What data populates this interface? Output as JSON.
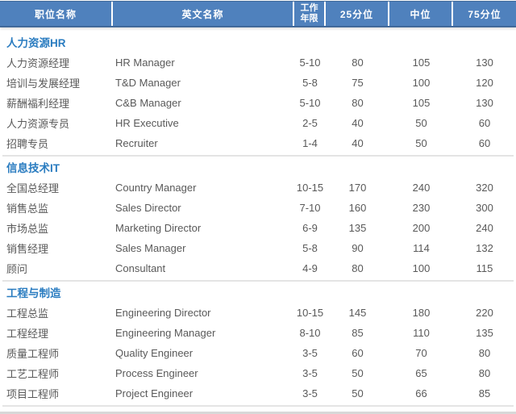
{
  "colors": {
    "header_bg": "#4f81bd",
    "header_border": "#40699a",
    "header_text": "#ffffff",
    "section_title_text": "#2a7cc0",
    "body_text": "#595959",
    "divider": "#e4e4e4"
  },
  "chart_data": {
    "type": "table",
    "title": "",
    "columns": [
      {
        "label": "职位名称"
      },
      {
        "label": "英文名称"
      },
      {
        "label": "工作年限",
        "line1": "工作",
        "line2": "年限"
      },
      {
        "label": "25分位"
      },
      {
        "label": "中位"
      },
      {
        "label": "75分位"
      }
    ],
    "sections": [
      {
        "title": "人力资源HR",
        "rows": [
          {
            "cn": "人力资源经理",
            "en": "HR Manager",
            "years": "5-10",
            "p25": "80",
            "p50": "105",
            "p75": "130"
          },
          {
            "cn": "培训与发展经理",
            "en": "T&D Manager",
            "years": "5-8",
            "p25": "75",
            "p50": "100",
            "p75": "120"
          },
          {
            "cn": "薪酬福利经理",
            "en": "C&B Manager",
            "years": "5-10",
            "p25": "80",
            "p50": "105",
            "p75": "130"
          },
          {
            "cn": "人力资源专员",
            "en": "HR Executive",
            "years": "2-5",
            "p25": "40",
            "p50": "50",
            "p75": "60"
          },
          {
            "cn": "招聘专员",
            "en": "Recruiter",
            "years": "1-4",
            "p25": "40",
            "p50": "50",
            "p75": "60"
          }
        ]
      },
      {
        "title": "信息技术IT",
        "rows": [
          {
            "cn": "全国总经理",
            "en": "Country Manager",
            "years": "10-15",
            "p25": "170",
            "p50": "240",
            "p75": "320"
          },
          {
            "cn": "销售总监",
            "en": "Sales Director",
            "years": "7-10",
            "p25": "160",
            "p50": "230",
            "p75": "300"
          },
          {
            "cn": "市场总监",
            "en": "Marketing Director",
            "years": "6-9",
            "p25": "135",
            "p50": "200",
            "p75": "240"
          },
          {
            "cn": "销售经理",
            "en": "Sales Manager",
            "years": "5-8",
            "p25": "90",
            "p50": "114",
            "p75": "132"
          },
          {
            "cn": "顾问",
            "en": "Consultant",
            "years": "4-9",
            "p25": "80",
            "p50": "100",
            "p75": "115"
          }
        ]
      },
      {
        "title": "工程与制造",
        "rows": [
          {
            "cn": "工程总监",
            "en": "Engineering Director",
            "years": "10-15",
            "p25": "145",
            "p50": "180",
            "p75": "220"
          },
          {
            "cn": "工程经理",
            "en": "Engineering Manager",
            "years": "8-10",
            "p25": "85",
            "p50": "110",
            "p75": "135"
          },
          {
            "cn": "质量工程师",
            "en": "Quality Engineer",
            "years": "3-5",
            "p25": "60",
            "p50": "70",
            "p75": "80"
          },
          {
            "cn": "工艺工程师",
            "en": "Process Engineer",
            "years": "3-5",
            "p25": "50",
            "p50": "65",
            "p75": "80"
          },
          {
            "cn": "项目工程师",
            "en": "Project Engineer",
            "years": "3-5",
            "p25": "50",
            "p50": "66",
            "p75": "85"
          }
        ]
      }
    ]
  }
}
